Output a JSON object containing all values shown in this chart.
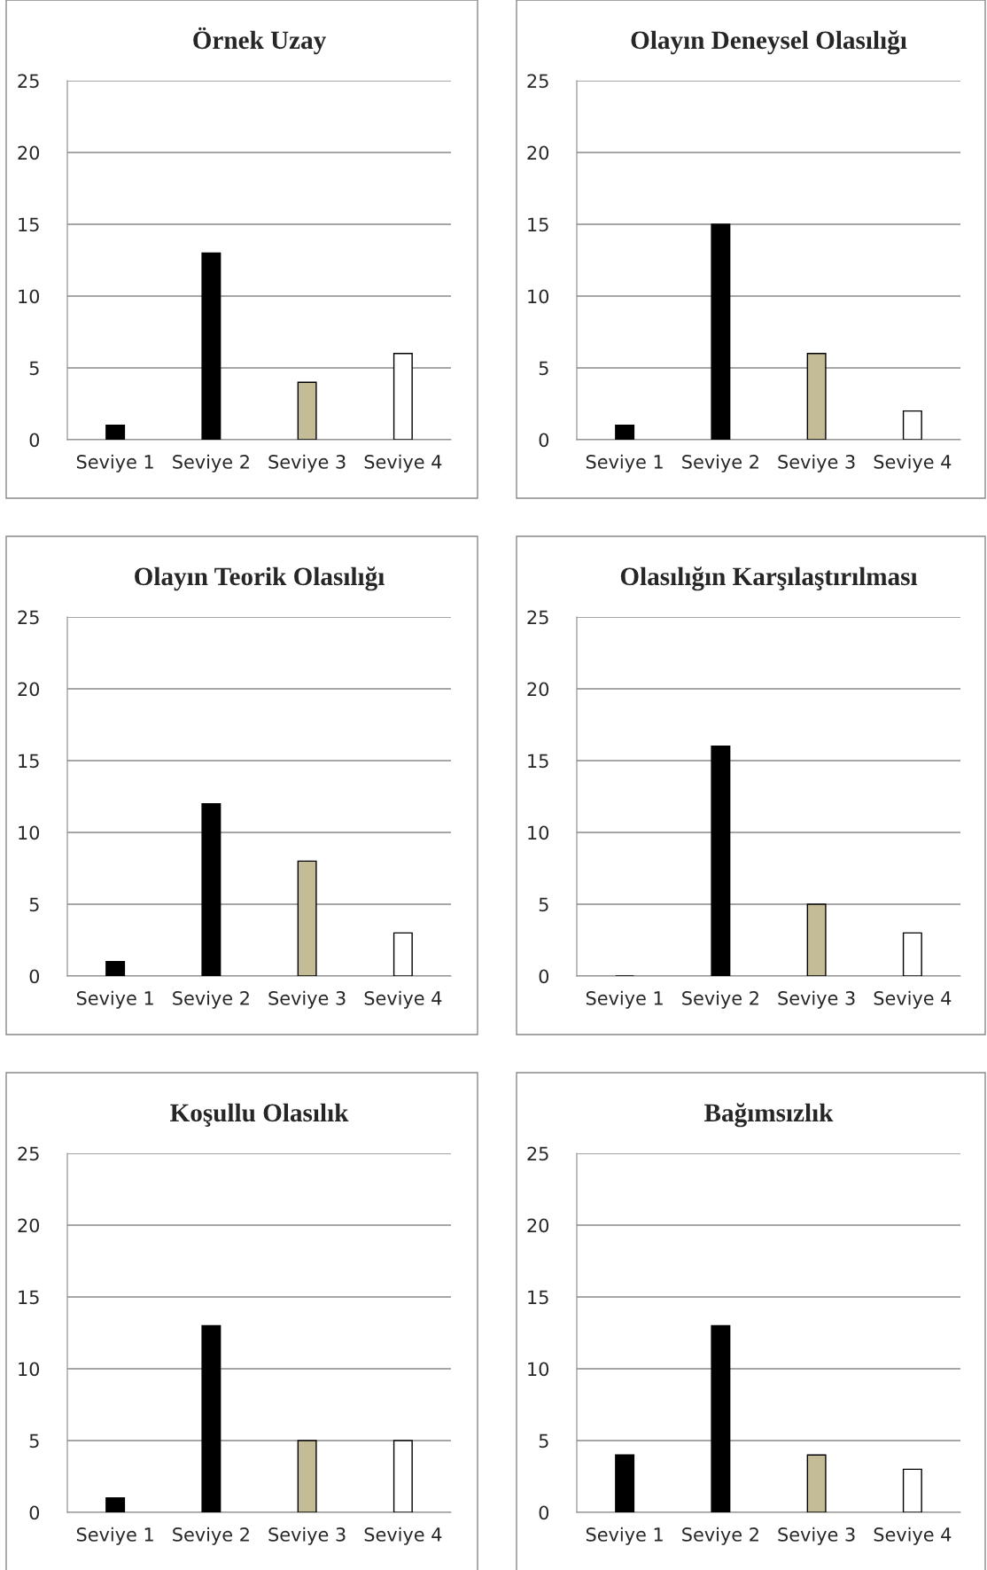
{
  "chart_data": [
    {
      "type": "bar",
      "title": "Örnek Uzay",
      "categories": [
        "Seviye 1",
        "Seviye 2",
        "Seviye 3",
        "Seviye 4"
      ],
      "values": [
        1,
        13,
        4,
        6
      ],
      "colors": [
        "#000000",
        "#000000",
        "#c4bc96",
        "#ffffff"
      ],
      "ylim": [
        0,
        25
      ],
      "yticks": [
        0,
        5,
        10,
        15,
        20,
        25
      ],
      "grid": "y",
      "legend": false
    },
    {
      "type": "bar",
      "title": "Olayın Deneysel Olasılığı",
      "categories": [
        "Seviye 1",
        "Seviye 2",
        "Seviye 3",
        "Seviye 4"
      ],
      "values": [
        1,
        15,
        6,
        2
      ],
      "colors": [
        "#000000",
        "#000000",
        "#c4bc96",
        "#ffffff"
      ],
      "ylim": [
        0,
        25
      ],
      "yticks": [
        0,
        5,
        10,
        15,
        20,
        25
      ],
      "grid": "y",
      "legend": false
    },
    {
      "type": "bar",
      "title": "Olayın Teorik Olasılığı",
      "categories": [
        "Seviye 1",
        "Seviye 2",
        "Seviye 3",
        "Seviye 4"
      ],
      "values": [
        1,
        12,
        8,
        3
      ],
      "colors": [
        "#000000",
        "#000000",
        "#c4bc96",
        "#ffffff"
      ],
      "ylim": [
        0,
        25
      ],
      "yticks": [
        0,
        5,
        10,
        15,
        20,
        25
      ],
      "grid": "y",
      "legend": false
    },
    {
      "type": "bar",
      "title": "Olasılığın Karşılaştırılması",
      "categories": [
        "Seviye 1",
        "Seviye 2",
        "Seviye 3",
        "Seviye 4"
      ],
      "values": [
        0,
        16,
        5,
        3
      ],
      "colors": [
        "#000000",
        "#000000",
        "#c4bc96",
        "#ffffff"
      ],
      "ylim": [
        0,
        25
      ],
      "yticks": [
        0,
        5,
        10,
        15,
        20,
        25
      ],
      "grid": "y",
      "legend": false
    },
    {
      "type": "bar",
      "title": "Koşullu Olasılık",
      "categories": [
        "Seviye 1",
        "Seviye 2",
        "Seviye 3",
        "Seviye 4"
      ],
      "values": [
        1,
        13,
        5,
        5
      ],
      "colors": [
        "#000000",
        "#000000",
        "#c4bc96",
        "#ffffff"
      ],
      "ylim": [
        0,
        25
      ],
      "yticks": [
        0,
        5,
        10,
        15,
        20,
        25
      ],
      "grid": "y",
      "legend": false
    },
    {
      "type": "bar",
      "title": "Bağımsızlık",
      "categories": [
        "Seviye 1",
        "Seviye 2",
        "Seviye 3",
        "Seviye 4"
      ],
      "values": [
        4,
        13,
        4,
        3
      ],
      "colors": [
        "#000000",
        "#000000",
        "#c4bc96",
        "#ffffff"
      ],
      "ylim": [
        0,
        25
      ],
      "yticks": [
        0,
        5,
        10,
        15,
        20,
        25
      ],
      "grid": "y",
      "legend": false
    }
  ]
}
